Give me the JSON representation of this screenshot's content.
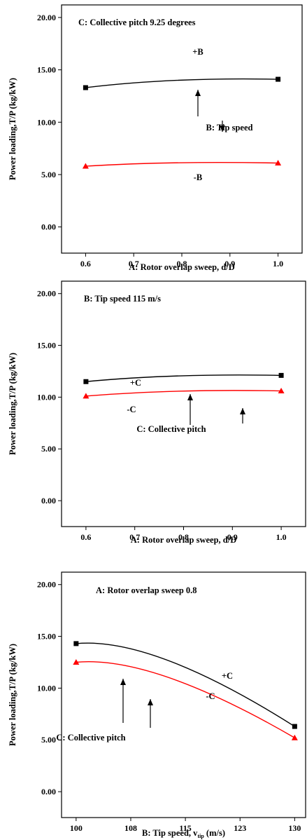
{
  "chart_data": [
    {
      "type": "line",
      "title": "C: Collective pitch 9.25 degrees",
      "xlabel": "A: Rotor overlap sweep, d/D",
      "ylabel": "Power loading,T/P (kg/kW)",
      "xlim": [
        0.55,
        1.05
      ],
      "ylim": [
        -2.5,
        21.2
      ],
      "x_ticks": [
        "0.6",
        "0.7",
        "0.8",
        "0.9",
        "1.0"
      ],
      "y_ticks": [
        "0.00",
        "5.00",
        "10.00",
        "15.00",
        "20.00"
      ],
      "series": [
        {
          "name": "+B",
          "color": "#000000",
          "marker": "square",
          "x": [
            0.6,
            1.0
          ],
          "y": [
            13.3,
            14.1
          ]
        },
        {
          "name": "-B",
          "color": "#ff0000",
          "marker": "triangle",
          "x": [
            0.6,
            1.0
          ],
          "y": [
            5.8,
            6.1
          ]
        }
      ],
      "annotations": [
        "B: Tip speed"
      ]
    },
    {
      "type": "line",
      "title": "B: Tip speed 115 m/s",
      "xlabel": "A: Rotor overlap sweep, d/D",
      "ylabel": "Power loading,T/P (kg/kW)",
      "xlim": [
        0.55,
        1.05
      ],
      "ylim": [
        -2.5,
        21.2
      ],
      "x_ticks": [
        "0.6",
        "0.7",
        "0.8",
        "0.9",
        "1.0"
      ],
      "y_ticks": [
        "0.00",
        "5.00",
        "10.00",
        "15.00",
        "20.00"
      ],
      "series": [
        {
          "name": "+C",
          "color": "#000000",
          "marker": "square",
          "x": [
            0.6,
            1.0
          ],
          "y": [
            11.5,
            12.1
          ]
        },
        {
          "name": "-C",
          "color": "#ff0000",
          "marker": "triangle",
          "x": [
            0.6,
            1.0
          ],
          "y": [
            10.1,
            10.6
          ]
        }
      ],
      "annotations": [
        "C: Collective pitch"
      ]
    },
    {
      "type": "line",
      "title": "A: Rotor overlap sweep 0.8",
      "xlabel": "B: Tip speed, v",
      "xlabel_sub": "tip",
      "xlabel_tail": " (m/s)",
      "ylabel": "Power loading,T/P (kg/kW)",
      "xlim": [
        98,
        131.5
      ],
      "ylim": [
        -2.5,
        21.2
      ],
      "x_tick_values": [
        100,
        107.5,
        115,
        122.5,
        130
      ],
      "x_ticks": [
        "100",
        "108",
        "115",
        "123",
        "130"
      ],
      "y_ticks": [
        "0.00",
        "5.00",
        "10.00",
        "15.00",
        "20.00"
      ],
      "series": [
        {
          "name": "+C",
          "color": "#000000",
          "marker": "square",
          "x": [
            100,
            130
          ],
          "y": [
            14.3,
            6.3
          ]
        },
        {
          "name": "-C",
          "color": "#ff0000",
          "marker": "triangle",
          "x": [
            100,
            130
          ],
          "y": [
            12.5,
            5.2
          ]
        }
      ],
      "annotations": [
        "C: Collective pitch"
      ]
    }
  ]
}
